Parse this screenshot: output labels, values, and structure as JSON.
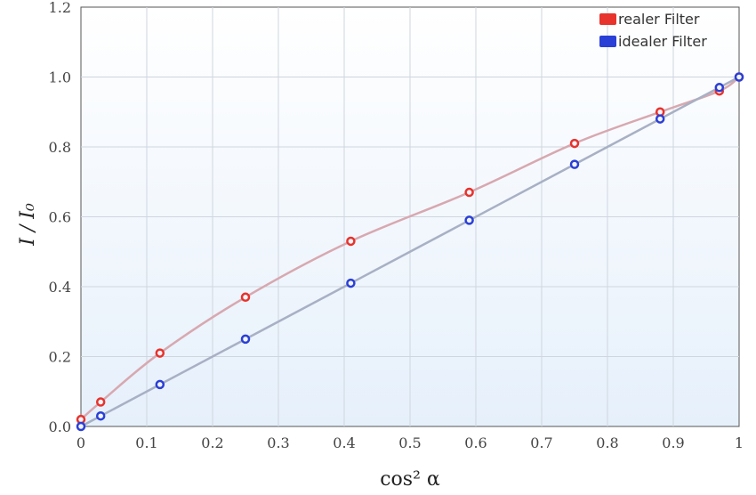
{
  "chart_data": {
    "type": "scatter",
    "xlabel": "cos² α",
    "ylabel": "I / I₀",
    "xlim": [
      0,
      1
    ],
    "ylim": [
      0,
      1.2
    ],
    "x_ticks": [
      "0",
      "0.1",
      "0.2",
      "0.3",
      "0.4",
      "0.5",
      "0.6",
      "0.7",
      "0.8",
      "0.9",
      "1"
    ],
    "y_ticks": [
      "0.0",
      "0.2",
      "0.4",
      "0.6",
      "0.8",
      "1.0",
      "1.2"
    ],
    "grid": true,
    "legend_position": "top-right",
    "series": [
      {
        "name": "realer Filter",
        "color": "#e8322c",
        "line_color": "#d8a8b0",
        "x": [
          0,
          0.03,
          0.12,
          0.25,
          0.41,
          0.59,
          0.75,
          0.88,
          0.97,
          1.0
        ],
        "y": [
          0.02,
          0.07,
          0.21,
          0.37,
          0.53,
          0.67,
          0.81,
          0.9,
          0.96,
          1.0
        ]
      },
      {
        "name": "idealer Filter",
        "color": "#2a3fd6",
        "line_color": "#a8b0c4",
        "x": [
          0,
          0.03,
          0.12,
          0.25,
          0.41,
          0.59,
          0.75,
          0.88,
          0.97,
          1.0
        ],
        "y": [
          0.0,
          0.03,
          0.12,
          0.25,
          0.41,
          0.59,
          0.75,
          0.88,
          0.97,
          1.0
        ]
      }
    ]
  }
}
